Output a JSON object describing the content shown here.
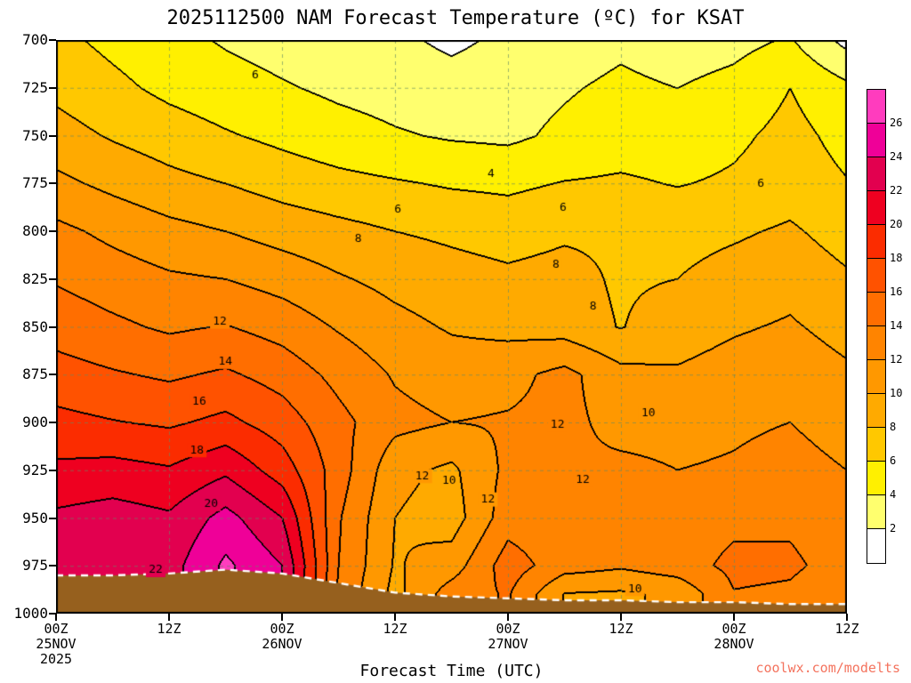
{
  "title": "2025112500 NAM Forecast Temperature (ºC) for KSAT",
  "x_axis_title": "Forecast Time (UTC)",
  "watermark": "coolwx.com/modelts",
  "colors": {
    "watermark": "#f4735e",
    "grid": "rgba(100,140,100,0.65)",
    "frame": "#000000",
    "background": "#ffffff"
  },
  "y_axis": {
    "tick_labels": [
      "700",
      "725",
      "750",
      "775",
      "800",
      "825",
      "850",
      "875",
      "900",
      "925",
      "950",
      "975",
      "1000"
    ]
  },
  "x_axis": {
    "ticks": [
      {
        "hour": 0,
        "label": "00Z",
        "date": "25NOV",
        "year": "2025"
      },
      {
        "hour": 12,
        "label": "12Z"
      },
      {
        "hour": 24,
        "label": "00Z",
        "date": "26NOV"
      },
      {
        "hour": 36,
        "label": "12Z"
      },
      {
        "hour": 48,
        "label": "00Z",
        "date": "27NOV"
      },
      {
        "hour": 60,
        "label": "12Z"
      },
      {
        "hour": 72,
        "label": "00Z",
        "date": "28NOV"
      },
      {
        "hour": 84,
        "label": "12Z"
      }
    ]
  },
  "colorbar": {
    "tick_labels": [
      "26",
      "24",
      "22",
      "20",
      "18",
      "16",
      "14",
      "12",
      "10",
      "8",
      "6",
      "4",
      "2"
    ]
  },
  "chart_data": {
    "type": "heatmap",
    "title": "2025112500 NAM Forecast Temperature (ºC) for KSAT",
    "xlabel": "Forecast Time (UTC)",
    "x_hours": [
      0,
      6,
      12,
      18,
      24,
      30,
      36,
      42,
      48,
      54,
      60,
      66,
      72,
      78,
      84
    ],
    "xlim": [
      0,
      84
    ],
    "x_tick_labels": [
      "00Z",
      "12Z",
      "00Z",
      "12Z",
      "00Z",
      "12Z",
      "00Z",
      "12Z"
    ],
    "x_tick_dates": [
      "25NOV",
      "26NOV",
      "27NOV",
      "28NOV"
    ],
    "pressure_levels": [
      700,
      725,
      750,
      775,
      800,
      825,
      850,
      875,
      900,
      925,
      950,
      975,
      990,
      1000
    ],
    "pressure_range": [
      700,
      1000
    ],
    "contour_levels": [
      2,
      4,
      6,
      8,
      10,
      12,
      14,
      16,
      18,
      20,
      22,
      24,
      26
    ],
    "band_colors": [
      "#ffffff",
      "#ffff6e",
      "#fff000",
      "#ffc800",
      "#ffaa00",
      "#ff9800",
      "#ff8400",
      "#ff6e00",
      "#ff5200",
      "#fb2c00",
      "#ee0020",
      "#e2004f",
      "#ef0098",
      "#ff3cbe"
    ],
    "terrain_color": "#96601e",
    "temperature_grid_c": [
      [
        6.5,
        5.5,
        4.6,
        3.8,
        3.2,
        2.6,
        2.4,
        1.6,
        2.4,
        3.0,
        3.6,
        3.0,
        3.4,
        4.2,
        1.4
      ],
      [
        7.5,
        6.5,
        5.5,
        4.8,
        4.2,
        3.6,
        3.2,
        2.8,
        3.2,
        3.8,
        4.4,
        4.0,
        4.6,
        6.0,
        4.5
      ],
      [
        8.8,
        7.8,
        7.0,
        6.2,
        5.5,
        4.8,
        4.2,
        3.8,
        3.6,
        4.4,
        5.0,
        4.8,
        5.6,
        6.6,
        5.4
      ],
      [
        10.5,
        9.5,
        8.6,
        8.0,
        7.2,
        6.6,
        6.2,
        5.8,
        5.6,
        6.1,
        6.3,
        5.9,
        6.3,
        7.0,
        6.1
      ],
      [
        12.5,
        11.5,
        10.6,
        10.0,
        9.2,
        8.6,
        8.0,
        7.6,
        7.2,
        7.7,
        7.7,
        7.3,
        7.7,
        8.3,
        7.1
      ],
      [
        13.8,
        13.0,
        12.3,
        12.0,
        11.2,
        10.2,
        9.4,
        8.8,
        8.4,
        8.7,
        7.7,
        8.0,
        8.8,
        9.4,
        8.3
      ],
      [
        15.2,
        14.4,
        13.7,
        14.1,
        13.2,
        11.8,
        10.6,
        9.8,
        9.4,
        9.1,
        7.9,
        9.2,
        9.8,
        10.2,
        9.4
      ],
      [
        16.8,
        16.2,
        15.7,
        16.3,
        15.2,
        13.4,
        11.8,
        11.0,
        11.4,
        12.6,
        10.6,
        10.2,
        10.7,
        11.0,
        10.3
      ],
      [
        18.6,
        18.1,
        17.7,
        18.5,
        17.0,
        14.6,
        12.6,
        12.0,
        12.2,
        12.5,
        11.4,
        11.4,
        11.7,
        12.0,
        11.2
      ],
      [
        20.4,
        20.7,
        20.2,
        21.6,
        19.0,
        15.0,
        10.6,
        9.6,
        12.5,
        12.2,
        12.4,
        12.0,
        12.2,
        12.7,
        12.0
      ],
      [
        22.4,
        22.9,
        22.3,
        24.7,
        22.0,
        14.2,
        10.0,
        9.0,
        13.1,
        12.6,
        12.2,
        12.9,
        13.5,
        13.7,
        12.9
      ],
      [
        22.9,
        23.5,
        23.2,
        26.4,
        24.0,
        14.0,
        9.8,
        11.0,
        15.0,
        12.9,
        12.3,
        13.1,
        14.5,
        14.3,
        13.3
      ],
      [
        null,
        null,
        null,
        null,
        null,
        13.6,
        9.4,
        13.0,
        14.2,
        9.9,
        9.7,
        10.4,
        13.9,
        13.7,
        12.7
      ],
      [
        null,
        null,
        null,
        null,
        null,
        null,
        null,
        null,
        null,
        null,
        null,
        null,
        null,
        null,
        null
      ]
    ],
    "surface_pressure_hpa": [
      980,
      980,
      979,
      977,
      979,
      984,
      989,
      991,
      992,
      993,
      993,
      994,
      994,
      995,
      995
    ],
    "contour_labels": [
      {
        "t": "6",
        "x": 0.252,
        "y": 0.062
      },
      {
        "t": "4",
        "x": 0.55,
        "y": 0.234
      },
      {
        "t": "6",
        "x": 0.432,
        "y": 0.295
      },
      {
        "t": "6",
        "x": 0.641,
        "y": 0.293
      },
      {
        "t": "6",
        "x": 0.891,
        "y": 0.251
      },
      {
        "t": "8",
        "x": 0.382,
        "y": 0.346
      },
      {
        "t": "8",
        "x": 0.632,
        "y": 0.392
      },
      {
        "t": "8",
        "x": 0.679,
        "y": 0.465
      },
      {
        "t": "12",
        "x": 0.207,
        "y": 0.491
      },
      {
        "t": "14",
        "x": 0.214,
        "y": 0.561
      },
      {
        "t": "16",
        "x": 0.181,
        "y": 0.63
      },
      {
        "t": "10",
        "x": 0.749,
        "y": 0.65
      },
      {
        "t": "18",
        "x": 0.178,
        "y": 0.715
      },
      {
        "t": "12",
        "x": 0.634,
        "y": 0.671
      },
      {
        "t": "12",
        "x": 0.463,
        "y": 0.76
      },
      {
        "t": "10",
        "x": 0.497,
        "y": 0.769
      },
      {
        "t": "12",
        "x": 0.546,
        "y": 0.801
      },
      {
        "t": "12",
        "x": 0.666,
        "y": 0.767
      },
      {
        "t": "20",
        "x": 0.196,
        "y": 0.809
      },
      {
        "t": "22",
        "x": 0.126,
        "y": 0.924
      },
      {
        "t": "10",
        "x": 0.732,
        "y": 0.957
      }
    ]
  }
}
